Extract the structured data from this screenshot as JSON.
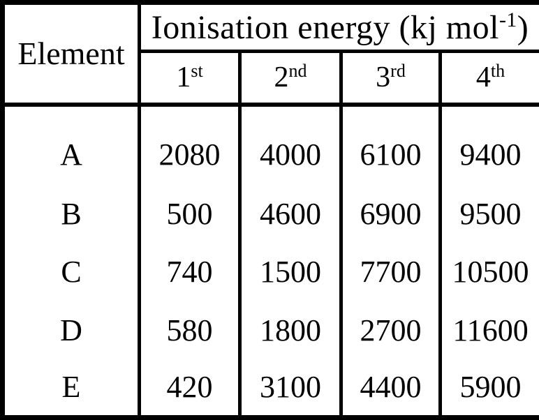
{
  "table": {
    "element_label": "Element",
    "title_main": "Ionisation energy (kj mol",
    "title_sup": "-1",
    "title_end": ")",
    "columns": [
      {
        "base": "1",
        "sup": "st"
      },
      {
        "base": "2",
        "sup": "nd"
      },
      {
        "base": "3",
        "sup": "rd"
      },
      {
        "base": "4",
        "sup": "th"
      }
    ],
    "rows": [
      {
        "element": "A",
        "values": [
          "2080",
          "4000",
          "6100",
          "9400"
        ]
      },
      {
        "element": "B",
        "values": [
          "500",
          "4600",
          "6900",
          "9500"
        ]
      },
      {
        "element": "C",
        "values": [
          "740",
          "1500",
          "7700",
          "10500"
        ]
      },
      {
        "element": "D",
        "values": [
          "580",
          "1800",
          "2700",
          "11600"
        ]
      },
      {
        "element": "E",
        "values": [
          "420",
          "3100",
          "4400",
          "5900"
        ]
      }
    ]
  },
  "colors": {
    "text": "#000000",
    "border": "#000000",
    "background": "#ffffff"
  }
}
